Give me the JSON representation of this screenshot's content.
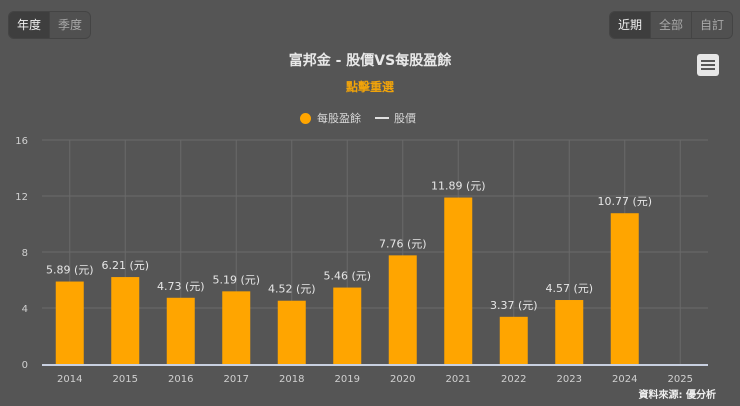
{
  "toolbar": {
    "period_buttons": [
      {
        "label": "年度",
        "active": true
      },
      {
        "label": "季度",
        "active": false
      }
    ],
    "range_buttons": [
      {
        "label": "近期",
        "active": true
      },
      {
        "label": "全部",
        "active": false
      },
      {
        "label": "自訂",
        "active": false
      }
    ],
    "menu_icon": "hamburger-menu-icon"
  },
  "chart": {
    "title": "富邦金 - 股價VS每股盈餘",
    "subtitle": "點擊重選",
    "legend": [
      {
        "label": "每股盈餘",
        "symbol": "circle",
        "color": "#ffa500"
      },
      {
        "label": "股價",
        "symbol": "line",
        "color": "#e0e0e0"
      }
    ],
    "source": "資料來源: 優分析",
    "value_suffix": " (元)"
  },
  "colors": {
    "background": "#555555",
    "bar": "#ffa500",
    "grid": "#6a6a6a",
    "axis_line": "#c8d0e0",
    "accent": "#f0a30a"
  },
  "chart_data": {
    "type": "bar",
    "title": "富邦金 - 股價VS每股盈餘",
    "subtitle": "點擊重選",
    "categories": [
      "2014",
      "2015",
      "2016",
      "2017",
      "2018",
      "2019",
      "2020",
      "2021",
      "2022",
      "2023",
      "2024",
      "2025"
    ],
    "series": [
      {
        "name": "每股盈餘",
        "type": "bar",
        "values": [
          5.89,
          6.21,
          4.73,
          5.19,
          4.52,
          5.46,
          7.76,
          11.89,
          3.37,
          4.57,
          10.77,
          null
        ]
      },
      {
        "name": "股價",
        "type": "line",
        "values": []
      }
    ],
    "data_labels": [
      "5.89 (元)",
      "6.21 (元)",
      "4.73 (元)",
      "5.19 (元)",
      "4.52 (元)",
      "5.46 (元)",
      "7.76 (元)",
      "11.89 (元)",
      "3.37 (元)",
      "4.57 (元)",
      "10.77 (元)",
      ""
    ],
    "yticks": [
      0,
      4,
      8,
      12,
      16
    ],
    "ylim": [
      0,
      16
    ],
    "xlabel": "",
    "ylabel": "",
    "grid": true,
    "legend_position": "top-center"
  }
}
